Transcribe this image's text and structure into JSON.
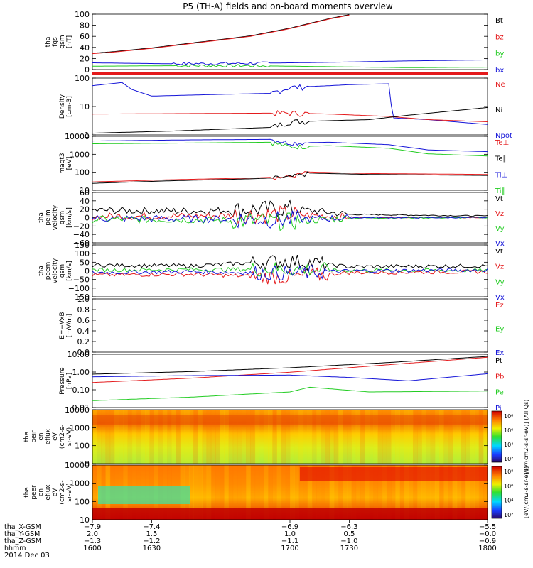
{
  "page": {
    "title": "P5 (TH-A) fields and on-board moments overview",
    "date_label": "2014 Dec 03"
  },
  "colors": {
    "black": "#000000",
    "red": "#e41a1c",
    "green": "#22cc22",
    "blue": "#1414d8"
  },
  "chart_data": [
    {
      "id": "fgs",
      "type": "line",
      "ylabel": [
        "tha",
        "fgs",
        "gsm",
        "[nT]"
      ],
      "yticks": [
        "100",
        "80",
        "60",
        "40",
        "20",
        "0"
      ],
      "ylim": [
        -10,
        105
      ],
      "legend": [
        {
          "label": "Bt",
          "color": "black"
        },
        {
          "label": "bz",
          "color": "red"
        },
        {
          "label": "by",
          "color": "green"
        },
        {
          "label": "bx",
          "color": "blue"
        }
      ],
      "series": [
        {
          "name": "Bt",
          "color": "black",
          "x": [
            1600,
            1610,
            1620,
            1630,
            1640,
            1650,
            1660,
            1670,
            1680,
            1690,
            1700,
            1710,
            1720,
            1730
          ],
          "values": [
            24,
            27,
            31,
            35,
            40,
            45,
            50,
            55,
            60,
            68,
            76,
            86,
            96,
            104
          ]
        },
        {
          "name": "bz",
          "color": "red",
          "x": [
            1600,
            1610,
            1620,
            1630,
            1640,
            1650,
            1660,
            1670,
            1680,
            1690,
            1700,
            1710,
            1720,
            1730
          ],
          "values": [
            23,
            26,
            30,
            34,
            39,
            44,
            49,
            54,
            59,
            67,
            75,
            85,
            95,
            103
          ]
        },
        {
          "name": "by",
          "color": "green",
          "x": [
            1600,
            1640,
            1680,
            1720,
            1760,
            1800
          ],
          "values": [
            -3,
            -2,
            -2,
            -4,
            -6,
            -5
          ]
        },
        {
          "name": "bx",
          "color": "blue",
          "x": [
            1600,
            1640,
            1680,
            1720,
            1760,
            1800
          ],
          "values": [
            4,
            2,
            3,
            5,
            8,
            10
          ]
        }
      ]
    },
    {
      "id": "density",
      "type": "line",
      "yscale": "log",
      "ylabel": [
        "Density",
        "[cm-3]"
      ],
      "yticks": [
        "100",
        "10",
        "1"
      ],
      "ylim": [
        1,
        400
      ],
      "legend": [
        {
          "label": "Ne",
          "color": "red"
        },
        {
          "label": "Ni",
          "color": "black"
        },
        {
          "label": "Npot",
          "color": "blue"
        }
      ],
      "series": [
        {
          "name": "Npot",
          "color": "blue",
          "x": [
            1600,
            1615,
            1620,
            1630,
            1660,
            1690,
            1700,
            1720,
            1730,
            1750,
            1752,
            1770,
            1800
          ],
          "values": [
            180,
            250,
            120,
            60,
            70,
            80,
            150,
            180,
            200,
            220,
            6,
            5,
            3
          ]
        },
        {
          "name": "Ne",
          "color": "red",
          "x": [
            1600,
            1650,
            1700,
            1720,
            1750,
            1770,
            1800
          ],
          "values": [
            9,
            9.5,
            10,
            9,
            7,
            5,
            4
          ]
        },
        {
          "name": "Ni",
          "color": "black",
          "x": [
            1600,
            1640,
            1690,
            1700,
            1740,
            1760,
            1800
          ],
          "values": [
            1.2,
            1.5,
            2.2,
            4,
            5,
            8,
            18
          ]
        }
      ]
    },
    {
      "id": "temperature",
      "type": "line",
      "yscale": "log",
      "ylabel": [
        "magt3",
        "[eV]"
      ],
      "yticks": [
        "10000",
        "1000",
        "100",
        "10"
      ],
      "ylim": [
        10,
        12000
      ],
      "legend": [
        {
          "label": "Te⊥",
          "color": "red"
        },
        {
          "label": "Te∥",
          "color": "black"
        },
        {
          "label": "Ti⊥",
          "color": "blue"
        },
        {
          "label": "Ti∥",
          "color": "green"
        }
      ],
      "series": [
        {
          "name": "Ti⊥",
          "color": "blue",
          "x": [
            1600,
            1650,
            1690,
            1700,
            1720,
            1750,
            1770,
            1800
          ],
          "values": [
            6500,
            7500,
            8000,
            5000,
            5500,
            4000,
            2000,
            1600
          ]
        },
        {
          "name": "Ti∥",
          "color": "green",
          "x": [
            1600,
            1650,
            1690,
            1700,
            1720,
            1750,
            1770,
            1800
          ],
          "values": [
            4500,
            5000,
            5500,
            3000,
            3500,
            2500,
            1200,
            900
          ]
        },
        {
          "name": "Te⊥",
          "color": "red",
          "x": [
            1600,
            1640,
            1680,
            1700,
            1710,
            1740,
            1770,
            1800
          ],
          "values": [
            30,
            40,
            50,
            60,
            110,
            90,
            85,
            80
          ]
        },
        {
          "name": "Te∥",
          "color": "black",
          "x": [
            1600,
            1640,
            1680,
            1700,
            1710,
            1740,
            1770,
            1800
          ],
          "values": [
            25,
            35,
            45,
            55,
            95,
            80,
            75,
            70
          ]
        }
      ]
    },
    {
      "id": "peim_velocity",
      "type": "line",
      "ylabel": [
        "tha",
        "peim",
        "velocity",
        "gsm",
        "[km/s]"
      ],
      "yticks": [
        "60",
        "40",
        "20",
        "0",
        "−20",
        "−40",
        "−60"
      ],
      "ylim": [
        -62,
        62
      ],
      "legend": [
        {
          "label": "Vt",
          "color": "black"
        },
        {
          "label": "Vz",
          "color": "red"
        },
        {
          "label": "Vy",
          "color": "green"
        },
        {
          "label": "Vx",
          "color": "blue"
        }
      ],
      "series": [
        {
          "name": "Vt",
          "color": "black",
          "x": [
            1600,
            1650,
            1700,
            1730,
            1800
          ],
          "values": [
            18,
            16,
            22,
            8,
            4
          ]
        },
        {
          "name": "Vz",
          "color": "red",
          "x": [
            1600,
            1650,
            1700,
            1730,
            1800
          ],
          "values": [
            3,
            4,
            8,
            1,
            0
          ]
        },
        {
          "name": "Vy",
          "color": "green",
          "x": [
            1600,
            1650,
            1700,
            1730,
            1800
          ],
          "values": [
            -4,
            -5,
            -10,
            -1,
            0
          ]
        },
        {
          "name": "Vx",
          "color": "blue",
          "x": [
            1600,
            1650,
            1700,
            1730,
            1800
          ],
          "values": [
            -2,
            -3,
            -5,
            0,
            0
          ]
        }
      ]
    },
    {
      "id": "peem_velocity",
      "type": "line",
      "ylabel": [
        "tha",
        "peem",
        "velocity",
        "gsm",
        "[km/s]"
      ],
      "yticks": [
        "150",
        "100",
        "50",
        "0",
        "−50",
        "−100",
        "−150"
      ],
      "ylim": [
        -155,
        155
      ],
      "legend": [
        {
          "label": "Vt",
          "color": "black"
        },
        {
          "label": "Vz",
          "color": "red"
        },
        {
          "label": "Vy",
          "color": "green"
        },
        {
          "label": "Vx",
          "color": "blue"
        }
      ],
      "series": [
        {
          "name": "Vt",
          "color": "black",
          "x": [
            1600,
            1650,
            1700,
            1730,
            1800
          ],
          "values": [
            35,
            30,
            60,
            25,
            30
          ]
        },
        {
          "name": "Vz",
          "color": "red",
          "x": [
            1600,
            1650,
            1700,
            1730,
            1800
          ],
          "values": [
            -25,
            -20,
            -40,
            -10,
            -5
          ]
        },
        {
          "name": "Vy",
          "color": "green",
          "x": [
            1600,
            1650,
            1700,
            1730,
            1800
          ],
          "values": [
            5,
            8,
            10,
            3,
            2
          ]
        },
        {
          "name": "Vx",
          "color": "blue",
          "x": [
            1600,
            1650,
            1700,
            1730,
            1800
          ],
          "values": [
            -10,
            -5,
            -15,
            0,
            5
          ]
        }
      ]
    },
    {
      "id": "efield",
      "type": "line",
      "ylabel": [
        "E=−VxB",
        "[mV/m]"
      ],
      "yticks": [
        "1.0",
        "0.8",
        "0.6",
        "0.4",
        "0.2",
        "0.0"
      ],
      "ylim": [
        0,
        1
      ],
      "legend": [
        {
          "label": "Ez",
          "color": "red"
        },
        {
          "label": "Ey",
          "color": "green"
        },
        {
          "label": "Ex",
          "color": "blue"
        }
      ],
      "series": []
    },
    {
      "id": "pressure",
      "type": "line",
      "yscale": "log",
      "ylabel": [
        "Pressure",
        "[nPa]"
      ],
      "yticks": [
        "10.00",
        "1.00",
        "0.10",
        "0.01"
      ],
      "ylim": [
        0.01,
        12
      ],
      "legend": [
        {
          "label": "Pt",
          "color": "black"
        },
        {
          "label": "Pb",
          "color": "red"
        },
        {
          "label": "Pe",
          "color": "green"
        },
        {
          "label": "Pi",
          "color": "blue"
        }
      ],
      "series": [
        {
          "name": "Pt",
          "color": "black",
          "x": [
            1600,
            1650,
            1700,
            1750,
            1800
          ],
          "values": [
            0.85,
            1.2,
            2,
            4,
            9
          ]
        },
        {
          "name": "Pb",
          "color": "red",
          "x": [
            1600,
            1650,
            1700,
            1750,
            1800
          ],
          "values": [
            0.28,
            0.5,
            1.1,
            3,
            8
          ]
        },
        {
          "name": "Pi",
          "color": "blue",
          "x": [
            1600,
            1650,
            1700,
            1730,
            1760,
            1800
          ],
          "values": [
            0.6,
            0.7,
            0.75,
            0.55,
            0.35,
            0.9
          ]
        },
        {
          "name": "Pe",
          "color": "green",
          "x": [
            1600,
            1650,
            1700,
            1710,
            1740,
            1800
          ],
          "values": [
            0.025,
            0.04,
            0.08,
            0.15,
            0.08,
            0.09
          ]
        }
      ]
    },
    {
      "id": "peir_eflux",
      "type": "heatmap",
      "yscale": "log",
      "ylabel": [
        "tha",
        "peir",
        "en",
        "eflux",
        "eV",
        "(cm2-s-",
        "sr-eV)"
      ],
      "yticks": [
        "10000",
        "1000",
        "100",
        "10"
      ],
      "ylim": [
        8,
        25000
      ],
      "colorbar": {
        "label": "[eV/(cm2-s-sr-eV)] (All Qs)",
        "ticks": [
          "10⁸",
          "10⁶",
          "10⁴",
          "10²"
        ]
      }
    },
    {
      "id": "peer_eflux",
      "type": "heatmap",
      "yscale": "log",
      "ylabel": [
        "tha",
        "peer",
        "en",
        "eflux",
        "eV",
        "(cm2-s-",
        "sr-eV)"
      ],
      "yticks": [
        "10000",
        "1000",
        "100",
        "10"
      ],
      "ylim": [
        8,
        25000
      ],
      "colorbar": {
        "label": "[eV/(cm2-s-sr-eV)]",
        "ticks": [
          "10⁸",
          "10⁶",
          "10⁴",
          "10²"
        ]
      }
    }
  ],
  "x_axis": {
    "xlim": [
      1600,
      1800
    ],
    "rows": [
      {
        "label": "tha_X-GSM",
        "values": [
          "−7.9",
          "−7.4",
          "−6.9",
          "−6.3",
          "−5.5"
        ]
      },
      {
        "label": "tha_Y-GSM",
        "values": [
          "2.0",
          "1.5",
          "1.0",
          "0.5",
          "−0.0"
        ]
      },
      {
        "label": "tha_Z-GSM",
        "values": [
          "−1.3",
          "−1.2",
          "−1.1",
          "−1.0",
          "−0.9"
        ]
      },
      {
        "label": "hhmm",
        "values": [
          "1600",
          "1630",
          "1700",
          "1730",
          "1800"
        ]
      }
    ]
  }
}
